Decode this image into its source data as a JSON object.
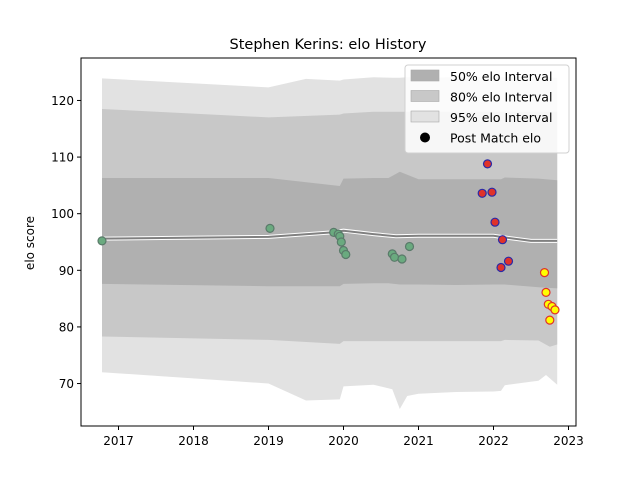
{
  "chart_data": {
    "type": "line",
    "title": "Stephen Kerins: elo History",
    "xlabel": "",
    "ylabel": "elo score",
    "xlim": [
      2016.5,
      2023.1
    ],
    "ylim": [
      62.5,
      127.5
    ],
    "x_ticks": [
      2017,
      2018,
      2019,
      2020,
      2021,
      2022,
      2023
    ],
    "y_ticks": [
      70,
      80,
      90,
      100,
      110,
      120
    ],
    "grid": false,
    "legend_position": "top-right",
    "legend": [
      {
        "label": "50% elo Interval",
        "kind": "band",
        "color": "#b0b0b0"
      },
      {
        "label": "80% elo Interval",
        "kind": "band",
        "color": "#c8c8c8"
      },
      {
        "label": "95% elo Interval",
        "kind": "band",
        "color": "#e2e2e2"
      },
      {
        "label": "Post Match elo",
        "kind": "marker",
        "color": "#000000"
      }
    ],
    "rating_line": {
      "color": "#808080",
      "x": [
        2016.78,
        2019.0,
        2019.85,
        2020.0,
        2020.4,
        2020.7,
        2021.0,
        2021.5,
        2022.0,
        2022.1,
        2022.5,
        2022.85
      ],
      "y": [
        95.6,
        95.9,
        96.7,
        97.0,
        96.4,
        96.0,
        96.1,
        96.1,
        96.1,
        95.9,
        95.2,
        95.2
      ]
    },
    "bands": [
      {
        "name": "95% elo Interval",
        "color": "#e2e2e2",
        "x": [
          2016.78,
          2019.0,
          2019.5,
          2019.95,
          2020.0,
          2020.4,
          2020.65,
          2020.75,
          2020.85,
          2021.0,
          2021.5,
          2022.0,
          2022.1,
          2022.15,
          2022.6,
          2022.7,
          2022.85
        ],
        "upper": [
          123.9,
          122.3,
          123.8,
          123.5,
          123.7,
          124.1,
          124.0,
          124.0,
          124.1,
          124.0,
          124.1,
          124.0,
          124.1,
          124.1,
          124.1,
          124.1,
          124.0
        ],
        "lower": [
          72.0,
          70.0,
          67.0,
          67.2,
          69.5,
          69.8,
          69.0,
          65.5,
          67.8,
          68.2,
          68.5,
          68.6,
          68.7,
          69.7,
          70.5,
          71.5,
          69.8
        ]
      },
      {
        "name": "80% elo Interval",
        "color": "#c8c8c8",
        "x": [
          2016.78,
          2019.0,
          2019.95,
          2020.0,
          2020.4,
          2020.7,
          2021.0,
          2021.5,
          2022.0,
          2022.1,
          2022.15,
          2022.6,
          2022.75,
          2022.85
        ],
        "upper": [
          118.5,
          117.0,
          117.5,
          117.7,
          118.0,
          118.0,
          118.0,
          118.0,
          118.0,
          118.0,
          118.0,
          118.0,
          118.0,
          118.0
        ],
        "lower": [
          78.3,
          77.7,
          77.0,
          77.5,
          77.5,
          77.5,
          77.5,
          77.5,
          77.5,
          77.5,
          77.7,
          77.6,
          76.5,
          76.9
        ]
      },
      {
        "name": "50% elo Interval",
        "color": "#b0b0b0",
        "x": [
          2016.78,
          2019.0,
          2019.95,
          2020.0,
          2020.4,
          2020.6,
          2020.75,
          2021.0,
          2021.5,
          2022.0,
          2022.1,
          2022.15,
          2022.6,
          2022.85
        ],
        "upper": [
          106.3,
          106.3,
          104.9,
          106.2,
          106.3,
          106.3,
          107.4,
          106.1,
          106.1,
          106.1,
          106.1,
          106.4,
          106.2,
          105.9
        ],
        "lower": [
          87.6,
          87.2,
          87.2,
          87.6,
          87.7,
          87.7,
          87.5,
          87.5,
          87.4,
          87.5,
          87.5,
          87.5,
          87.0,
          86.8
        ]
      }
    ],
    "band_cutoff_x": 2022.1,
    "series": [
      {
        "name": "Post Match elo",
        "marker_groups": [
          {
            "fill": "#6aaa7f",
            "edge": "#5a7a6a",
            "points": [
              [
                2016.78,
                95.2
              ],
              [
                2019.02,
                97.4
              ],
              [
                2019.87,
                96.7
              ],
              [
                2019.93,
                96.4
              ],
              [
                2019.95,
                96.0
              ],
              [
                2019.97,
                95.0
              ],
              [
                2020.0,
                93.5
              ],
              [
                2020.03,
                92.8
              ],
              [
                2020.65,
                92.9
              ],
              [
                2020.68,
                92.3
              ],
              [
                2020.78,
                92.0
              ],
              [
                2020.88,
                94.2
              ]
            ]
          },
          {
            "fill": "#e0322a",
            "edge": "#2a2aa8",
            "points": [
              [
                2021.85,
                103.6
              ],
              [
                2021.92,
                108.8
              ],
              [
                2021.98,
                103.8
              ],
              [
                2022.02,
                98.5
              ],
              [
                2022.1,
                90.5
              ],
              [
                2022.12,
                95.4
              ],
              [
                2022.2,
                91.6
              ]
            ]
          },
          {
            "fill": "#ffff00",
            "edge": "#e0322a",
            "points": [
              [
                2022.68,
                89.6
              ],
              [
                2022.7,
                86.1
              ],
              [
                2022.73,
                84.0
              ],
              [
                2022.75,
                81.2
              ],
              [
                2022.78,
                83.6
              ],
              [
                2022.82,
                83.0
              ]
            ]
          }
        ]
      }
    ]
  }
}
